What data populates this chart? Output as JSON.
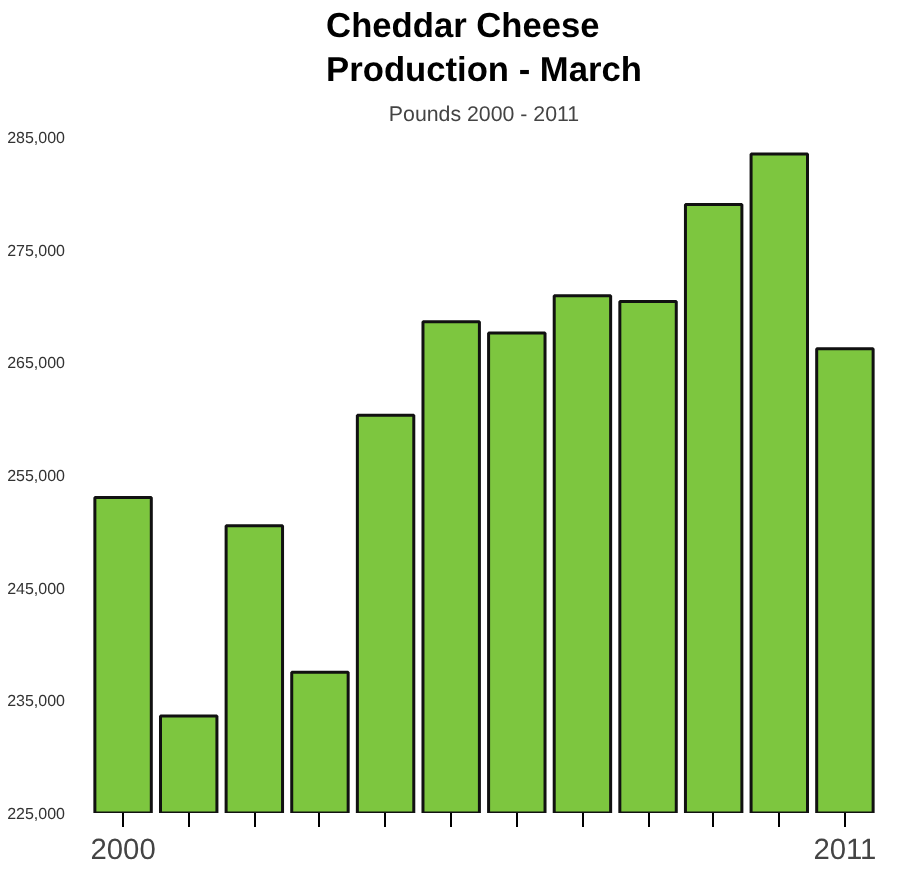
{
  "chart_data": {
    "type": "bar",
    "title": "Cheddar Cheese Production - March",
    "subtitle": "Pounds 2000 - 2011",
    "categories": [
      "2000",
      null,
      null,
      null,
      null,
      null,
      null,
      null,
      null,
      null,
      null,
      "2011"
    ],
    "values": [
      253000,
      233600,
      250500,
      237500,
      260300,
      268600,
      267600,
      270900,
      270400,
      279000,
      283500,
      266200
    ],
    "color": "#7dc63f",
    "ylim": [
      225000,
      285000
    ],
    "yticks": [
      {
        "value": 225000,
        "label": "225,000"
      },
      {
        "value": 235000,
        "label": "235,000"
      },
      {
        "value": 245000,
        "label": "245,000"
      },
      {
        "value": 255000,
        "label": "255,000"
      },
      {
        "value": 265000,
        "label": "265,000"
      },
      {
        "value": 275000,
        "label": "275,000"
      },
      {
        "value": 285000,
        "label": "285,000"
      }
    ],
    "grid": false
  }
}
